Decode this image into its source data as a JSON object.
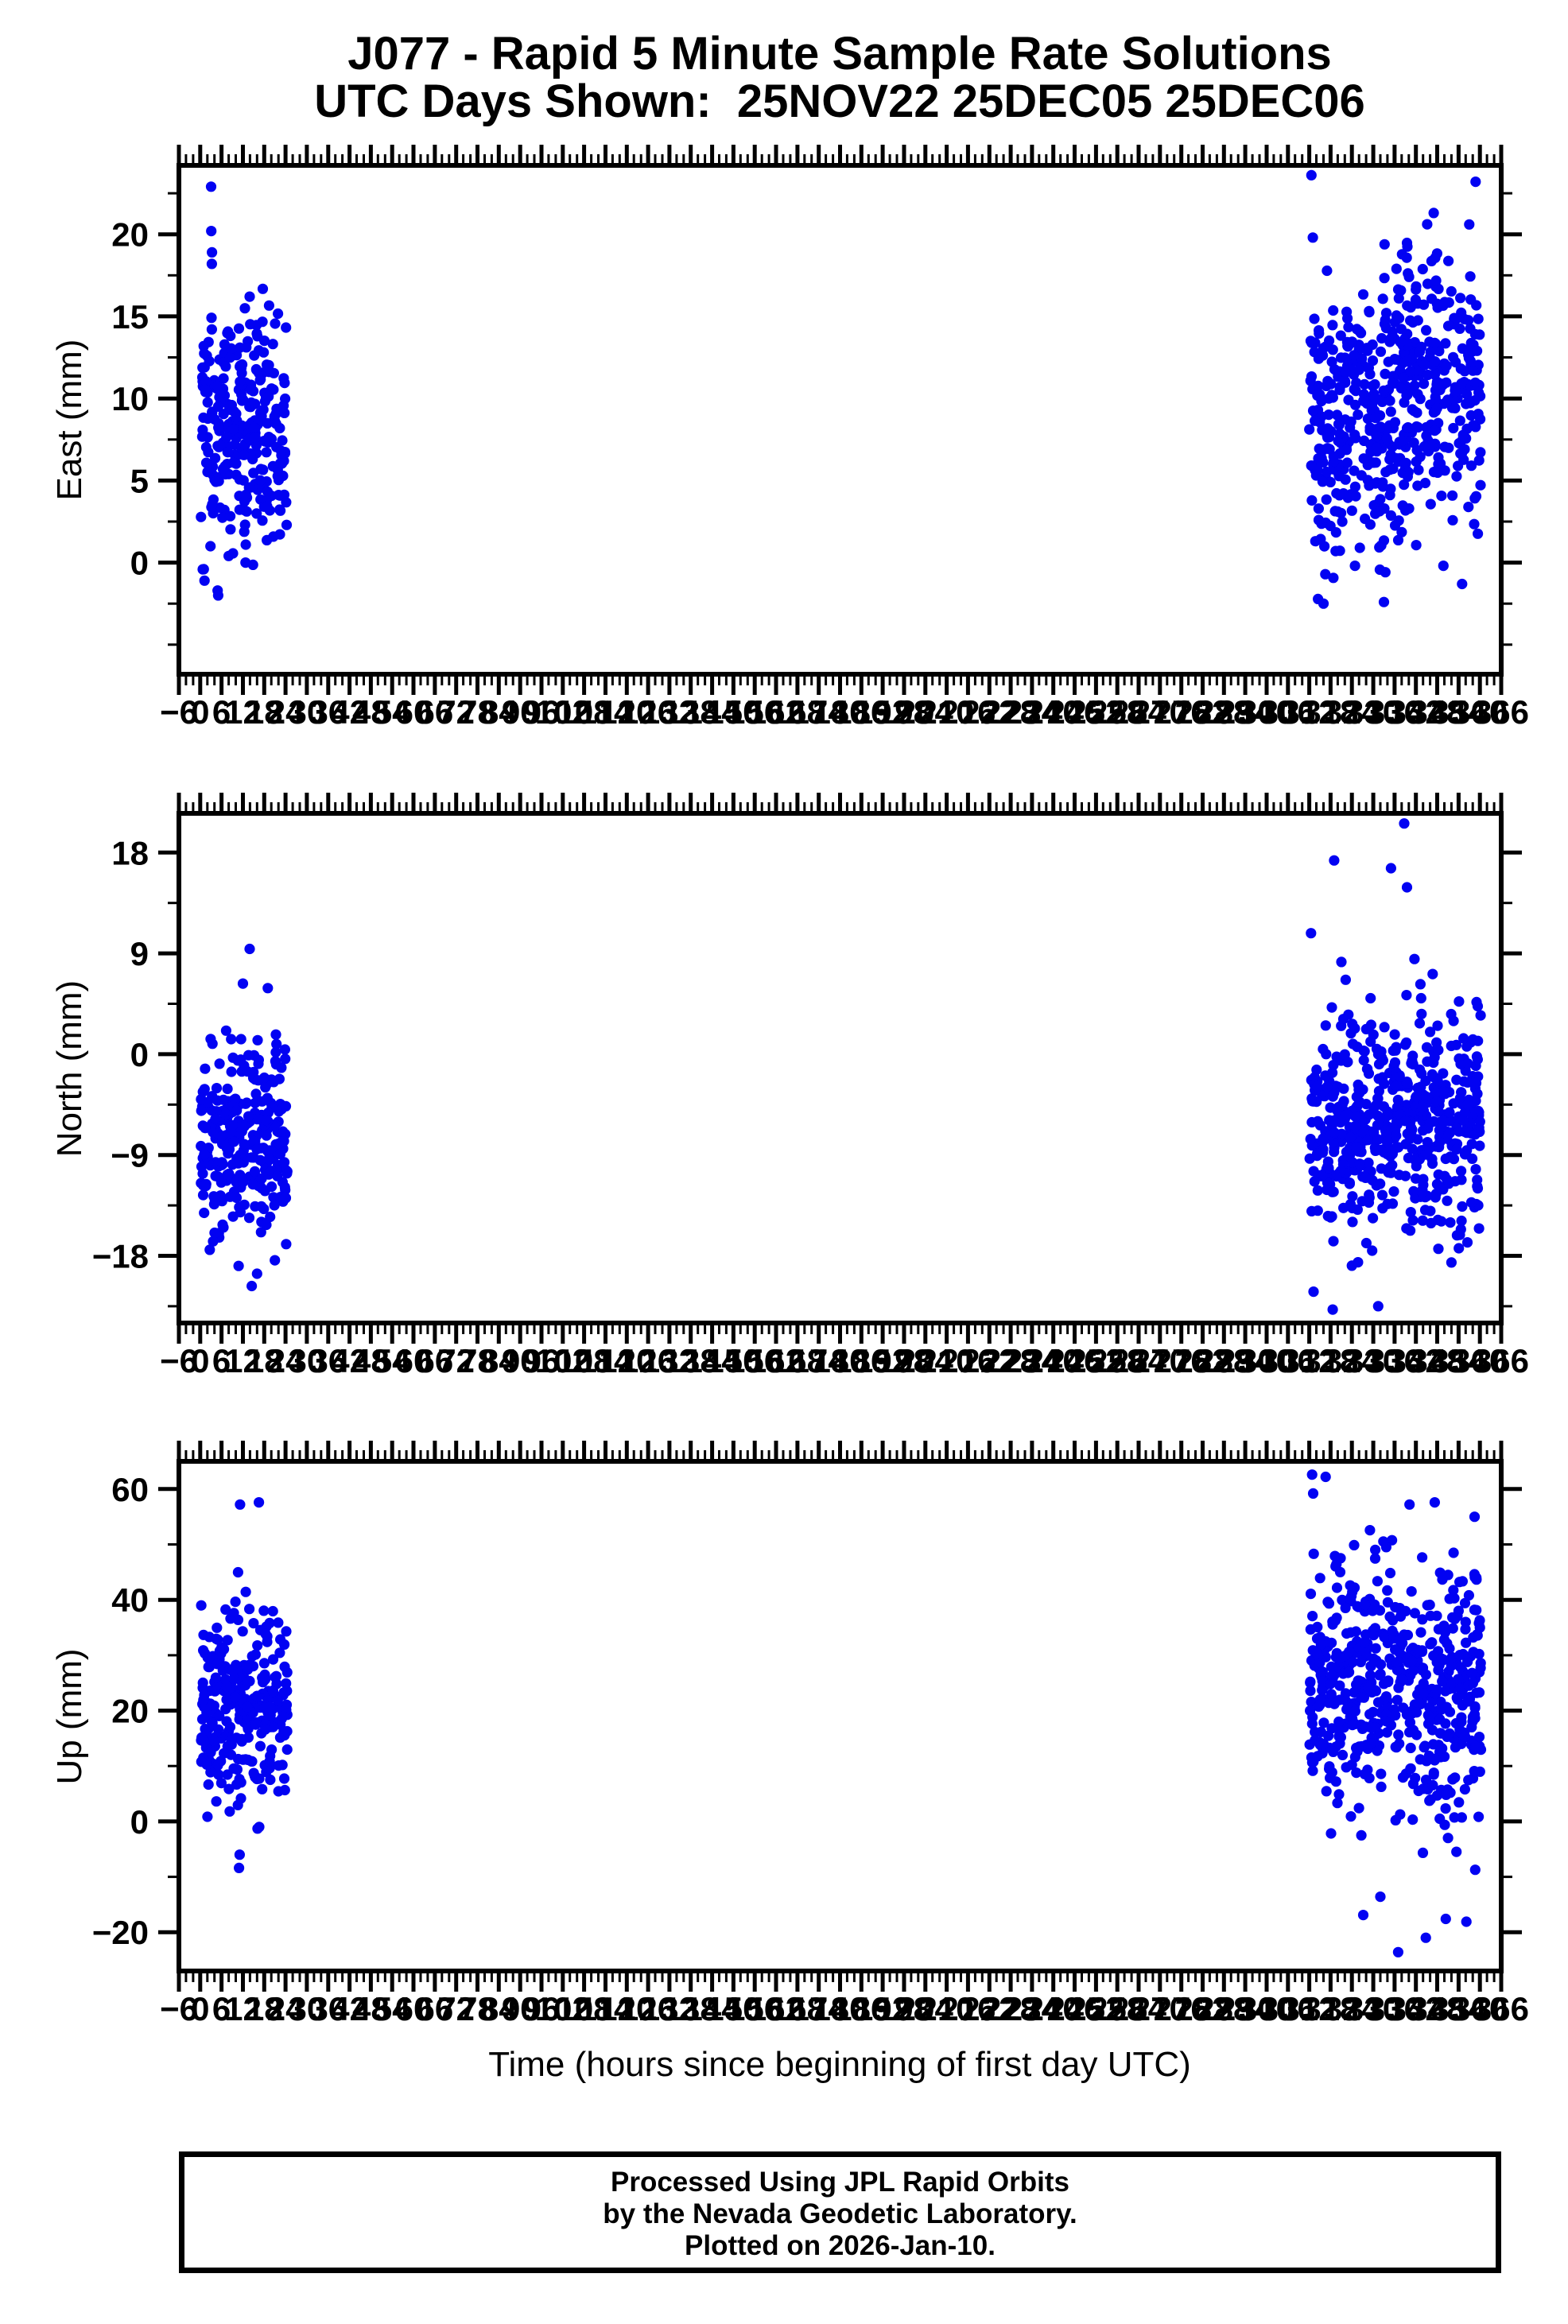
{
  "header": {
    "title_line1": "J077 - Rapid 5 Minute Sample Rate Solutions",
    "title_line2": "UTC Days Shown:  25NOV22 25DEC05 25DEC06"
  },
  "footer": {
    "lines": [
      "Processed Using JPL Rapid Orbits",
      "by the Nevada Geodetic Laboratory.",
      "Plotted on 2026-Jan-10."
    ]
  },
  "chart_data": {
    "type": "scatter",
    "title": "J077 - Rapid 5 Minute Sample Rate Solutions",
    "subtitle": "UTC Days Shown:  25NOV22 25DEC05 25DEC06",
    "station": "J077",
    "utc_days": [
      "25NOV22",
      "25DEC05",
      "25DEC06"
    ],
    "day_start_hours": [
      0,
      312,
      336
    ],
    "samples_per_day": 288,
    "background": "#FFFFFF",
    "axis_color": "#000000",
    "grid": false,
    "legend": "none",
    "marker": {
      "shape": "circle",
      "color": "#0202F2",
      "radius_px": 6.6
    },
    "x_axis": {
      "label": "Time (hours since beginning of first day UTC)",
      "min": -6,
      "max": 366,
      "major_tick_step": 6,
      "minor_tick_step": 2,
      "tick_labels": [
        -6,
        0,
        6,
        12,
        18,
        24,
        30,
        36,
        42,
        48,
        54,
        60,
        66,
        72,
        78,
        84,
        90,
        96,
        102,
        108,
        114,
        120,
        126,
        132,
        138,
        144,
        150,
        156,
        162,
        168,
        174,
        180,
        186,
        192,
        198,
        204,
        210,
        216,
        222,
        228,
        234,
        240,
        246,
        252,
        258,
        264,
        270,
        276,
        282,
        288,
        294,
        300,
        306,
        312,
        318,
        324,
        330,
        336,
        342,
        348,
        354,
        360,
        366
      ]
    },
    "subplots": [
      {
        "name": "east",
        "ylabel": "East (mm)",
        "ylim": [
          -6.8,
          24.2
        ],
        "yticks": [
          0,
          5,
          10,
          15,
          20
        ],
        "y_minor_step": 2.5,
        "clusters": [
          {
            "x0": 0.2,
            "x1": 24.5,
            "mean": 8.4,
            "sd": 3.6,
            "min": -2.0,
            "max": 17.3,
            "n": 282,
            "seed": 101
          },
          {
            "x0": 312.0,
            "x1": 336.0,
            "mean": 8.6,
            "sd": 4.0,
            "min": -2.6,
            "max": 19.5,
            "n": 282,
            "seed": 102
          },
          {
            "x0": 336.0,
            "x1": 360.3,
            "mean": 10.5,
            "sd": 4.1,
            "min": -1.5,
            "max": 21.0,
            "n": 282,
            "seed": 103
          }
        ],
        "extra_points": [
          [
            3.05,
            22.9
          ],
          [
            3.1,
            20.2
          ],
          [
            3.3,
            18.9
          ],
          [
            3.25,
            18.2
          ],
          [
            1.0,
            -0.4
          ],
          [
            1.2,
            -1.1
          ],
          [
            4.9,
            -1.7
          ],
          [
            5.05,
            -2.0
          ],
          [
            312.6,
            23.6
          ],
          [
            358.8,
            23.2
          ],
          [
            357.0,
            20.6
          ],
          [
            313.0,
            19.8
          ],
          [
            316.0,
            -2.5
          ],
          [
            333.0,
            -2.4
          ],
          [
            355.0,
            -1.3
          ],
          [
            347.0,
            21.3
          ]
        ]
      },
      {
        "name": "north",
        "ylabel": "North (mm)",
        "ylim": [
          -24.0,
          21.5
        ],
        "yticks": [
          -18,
          -9,
          0,
          9,
          18
        ],
        "y_minor_step": 4.5,
        "clusters": [
          {
            "x0": 0.2,
            "x1": 24.5,
            "mean": -7.8,
            "sd": 4.2,
            "min": -17.5,
            "max": 5.8,
            "n": 282,
            "seed": 201
          },
          {
            "x0": 312.0,
            "x1": 336.0,
            "mean": -6.6,
            "sd": 4.8,
            "min": -19.5,
            "max": 9.0,
            "n": 282,
            "seed": 202
          },
          {
            "x0": 336.0,
            "x1": 360.3,
            "mean": -6.2,
            "sd": 5.0,
            "min": -17.5,
            "max": 9.5,
            "n": 282,
            "seed": 203
          }
        ],
        "extra_points": [
          [
            13.9,
            9.4
          ],
          [
            12.0,
            6.3
          ],
          [
            19.0,
            5.9
          ],
          [
            14.5,
            -20.7
          ],
          [
            16.0,
            -19.6
          ],
          [
            10.8,
            -18.9
          ],
          [
            21.0,
            -18.4
          ],
          [
            338.7,
            20.6
          ],
          [
            335.0,
            16.6
          ],
          [
            339.5,
            14.9
          ],
          [
            319.0,
            17.3
          ],
          [
            312.5,
            10.8
          ],
          [
            313.2,
            -21.2
          ],
          [
            318.6,
            -22.8
          ],
          [
            331.4,
            -22.5
          ],
          [
            352.0,
            -18.6
          ],
          [
            356.5,
            -16.8
          ]
        ]
      },
      {
        "name": "up",
        "ylabel": "Up (mm)",
        "ylim": [
          -27.0,
          65.0
        ],
        "yticks": [
          -20,
          0,
          20,
          40,
          60
        ],
        "y_minor_step": 10,
        "clusters": [
          {
            "x0": 0.2,
            "x1": 24.5,
            "mean": 22.0,
            "sd": 9.5,
            "min": -2.0,
            "max": 48.0,
            "n": 282,
            "seed": 301
          },
          {
            "x0": 312.0,
            "x1": 336.0,
            "mean": 26.0,
            "sd": 11.0,
            "min": -6.0,
            "max": 53.0,
            "n": 282,
            "seed": 302
          },
          {
            "x0": 336.0,
            "x1": 360.3,
            "mean": 23.0,
            "sd": 11.5,
            "min": -9.0,
            "max": 50.0,
            "n": 282,
            "seed": 303
          }
        ],
        "extra_points": [
          [
            16.5,
            57.6
          ],
          [
            11.2,
            57.2
          ],
          [
            10.9,
            -8.4
          ],
          [
            11.1,
            -6.0
          ],
          [
            312.8,
            62.6
          ],
          [
            313.1,
            59.2
          ],
          [
            316.6,
            62.2
          ],
          [
            340.2,
            57.2
          ],
          [
            347.3,
            57.6
          ],
          [
            352.6,
            48.5
          ],
          [
            337.0,
            -23.6
          ],
          [
            344.8,
            -21.0
          ],
          [
            350.4,
            -17.6
          ],
          [
            327.2,
            -16.9
          ],
          [
            356.2,
            -18.1
          ],
          [
            332.0,
            -13.6
          ],
          [
            358.5,
            55.0
          ],
          [
            359.0,
            44.0
          ],
          [
            354.0,
            38.0
          ]
        ]
      }
    ]
  }
}
